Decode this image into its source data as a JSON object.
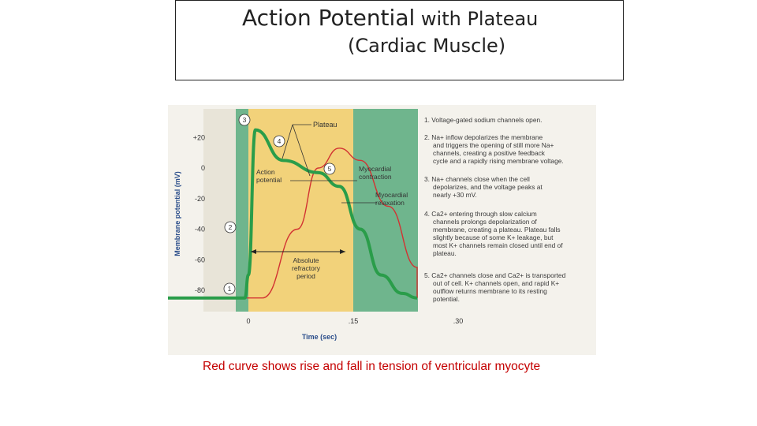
{
  "title": {
    "line1_main": "Action Potential",
    "line1_rest": " with Plateau",
    "line2": "(Cardiac Muscle)"
  },
  "chart_data": {
    "type": "line",
    "xlabel": "Time (sec)",
    "ylabel": "Membrane potential (mV)",
    "x_ticks": [
      "0",
      ".15",
      ".30"
    ],
    "y_ticks": [
      "+20",
      "0",
      "-20",
      "-40",
      "-60",
      "-80"
    ],
    "series": [
      {
        "name": "Action potential",
        "color": "#2a9d4a",
        "x": [
          -0.12,
          -0.005,
          0.0,
          0.01,
          0.05,
          0.1,
          0.13,
          0.16,
          0.19,
          0.22,
          0.25,
          0.3,
          0.43
        ],
        "y": [
          -85,
          -85,
          -70,
          25,
          5,
          -3,
          -12,
          -40,
          -70,
          -82,
          -85,
          -85,
          -85
        ]
      },
      {
        "name": "Myocardial contraction",
        "color": "#d23232",
        "x": [
          -0.12,
          0.02,
          0.07,
          0.1,
          0.13,
          0.16,
          0.2,
          0.25,
          0.3,
          0.35,
          0.43
        ],
        "y": [
          -85,
          -85,
          -40,
          0,
          13,
          5,
          -25,
          -65,
          -82,
          -85,
          -85
        ]
      }
    ],
    "shaded_regions": [
      {
        "name": "depolarization (green)",
        "color": "#6fb58d"
      },
      {
        "name": "plateau (yellow)",
        "color": "#f2d27a"
      },
      {
        "name": "repolarization (green)",
        "color": "#6fb58d"
      }
    ]
  },
  "labels": {
    "plateau": "Plateau",
    "action_potential_1": "Action",
    "action_potential_2": "potential",
    "contraction_1": "Myocardial",
    "contraction_2": "contraction",
    "relaxation_1": "Myocardial",
    "relaxation_2": "relaxation",
    "arp_1": "Absolute",
    "arp_2": "refractory",
    "arp_3": "period",
    "markers": [
      "1",
      "2",
      "3",
      "4",
      "5"
    ]
  },
  "steps": [
    [
      "1. Voltage-gated sodium channels open."
    ],
    [
      "2. Na+ inflow depolarizes the membrane",
      "and triggers the opening of still more Na+",
      "channels, creating a positive feedback",
      "cycle and a rapidly rising membrane voltage."
    ],
    [
      "3. Na+ channels close when the cell",
      "depolarizes, and the voltage peaks at",
      "nearly +30 mV."
    ],
    [
      "4. Ca2+ entering through slow calcium",
      "channels prolongs depolarization of",
      "membrane, creating a plateau. Plateau falls",
      "slightly because of some K+ leakage, but",
      "most K+ channels remain closed until end of",
      "plateau."
    ],
    [
      "5. Ca2+ channels close and Ca2+ is transported",
      "out of cell. K+ channels open, and rapid K+",
      "outflow returns membrane to its resting",
      "potential."
    ]
  ],
  "caption": "Red curve shows rise and fall in tension of ventricular myocyte"
}
